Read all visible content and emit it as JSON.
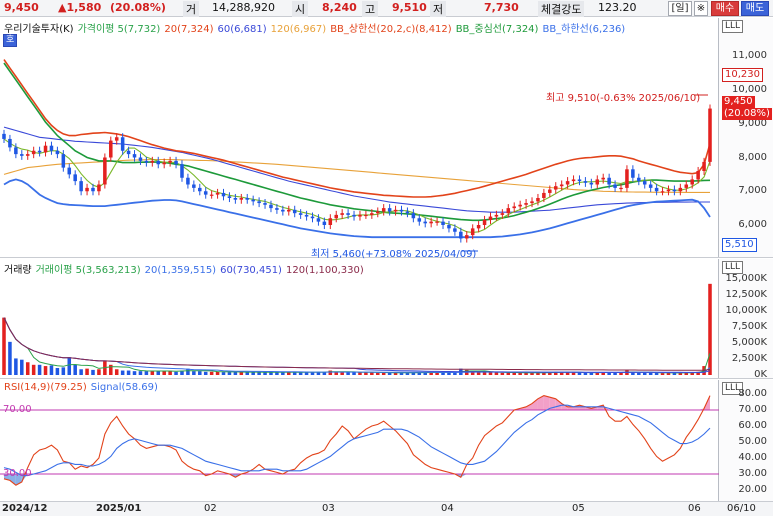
{
  "header": {
    "price": "9,450",
    "change": "▲1,580",
    "change_pct": "(20.08%)",
    "vol_label": "거",
    "volume": "14,288,920",
    "open_label": "시",
    "open": "8,240",
    "high_label": "고",
    "high": "9,510",
    "low_label": "저",
    "low": "7,730",
    "strength_label": "체결강도",
    "strength": "123.20",
    "period_btn": "[일]",
    "settings_icon": "※",
    "buy_btn": "매수",
    "sell_btn": "매도"
  },
  "price_panel": {
    "badge": "호",
    "legend": [
      {
        "text": "우리기술투자(K)",
        "color": "#111111"
      },
      {
        "text": "가격이평 5(7,732)",
        "color": "#2aa24a"
      },
      {
        "text": "20(7,324)",
        "color": "#e2431a"
      },
      {
        "text": "60(6,681)",
        "color": "#3a49d8"
      },
      {
        "text": "120(6,967)",
        "color": "#e8a23a"
      },
      {
        "text": "BB_상한선(20,2,c)(8,412)",
        "color": "#e2431a"
      },
      {
        "text": "BB_중심선(7,324)",
        "color": "#1d9a3a"
      },
      {
        "text": "BB_하한선(6,236)",
        "color": "#3a70e8"
      }
    ],
    "axis_ticks": [
      "11,000",
      "10,000",
      "9,000",
      "8,000",
      "7,000",
      "6,000"
    ],
    "last_price_tag": "9,450",
    "last_pct_tag": "(20.08%)",
    "top_tag": "10,230",
    "bottom_tag": "5,510",
    "high_annotation": "최고 9,510(-0.63% 2025/06/10)",
    "low_annotation": "최저 5,460(+73.08% 2025/04/09)",
    "colors": {
      "up": "#e3211f",
      "down": "#1f57e3"
    }
  },
  "volume_panel": {
    "legend": [
      {
        "text": "거래량",
        "color": "#111111"
      },
      {
        "text": "거래이평 5(3,563,213)",
        "color": "#2aa24a"
      },
      {
        "text": "20(1,359,515)",
        "color": "#3a70e8"
      },
      {
        "text": "60(730,451)",
        "color": "#3a49d8"
      },
      {
        "text": "120(1,100,330)",
        "color": "#8a2a4a"
      }
    ],
    "axis_ticks": [
      "15,000K",
      "12,500K",
      "10,000K",
      "7,500K",
      "5,000K",
      "2,500K",
      "0K"
    ]
  },
  "rsi_panel": {
    "legend": [
      {
        "text": "RSI(14,9)(79.25)",
        "color": "#e2431a"
      },
      {
        "text": "Signal(58.69)",
        "color": "#3a70e8"
      }
    ],
    "axis_ticks": [
      "80.00",
      "70.00",
      "60.00",
      "50.00",
      "40.00",
      "30.00",
      "20.00"
    ],
    "overbought_label": "70.00",
    "oversold_label": "30.00"
  },
  "x_axis": {
    "labels": [
      "2024/12",
      "2025/01",
      "02",
      "03",
      "04",
      "05",
      "06",
      "06/10"
    ]
  },
  "chart_data": {
    "type": "candlestick",
    "days": 120,
    "price_range": [
      5200,
      11600
    ],
    "close_series": [
      8550,
      8300,
      8100,
      8050,
      8100,
      8200,
      8150,
      8350,
      8200,
      8100,
      7700,
      7500,
      7300,
      7000,
      7100,
      7000,
      7200,
      8000,
      8500,
      8600,
      8200,
      8100,
      8000,
      7900,
      7850,
      7900,
      7800,
      7850,
      7900,
      7800,
      7400,
      7200,
      7100,
      7000,
      6900,
      6900,
      6950,
      6850,
      6800,
      6750,
      6800,
      6750,
      6700,
      6650,
      6600,
      6500,
      6450,
      6400,
      6450,
      6350,
      6300,
      6250,
      6200,
      6100,
      6000,
      6200,
      6300,
      6350,
      6300,
      6250,
      6300,
      6300,
      6350,
      6400,
      6500,
      6400,
      6450,
      6400,
      6350,
      6200,
      6100,
      6050,
      6100,
      6100,
      6000,
      5900,
      5800,
      5600,
      5700,
      5900,
      6000,
      6150,
      6250,
      6300,
      6350,
      6500,
      6550,
      6600,
      6650,
      6700,
      6800,
      6950,
      7050,
      7150,
      7200,
      7300,
      7350,
      7300,
      7250,
      7200,
      7350,
      7400,
      7200,
      7100,
      7100,
      7650,
      7400,
      7300,
      7200,
      7100,
      7000,
      7000,
      7050,
      7000,
      7100,
      7200,
      7350,
      7600,
      7870,
      9450
    ],
    "ma20": [
      10800,
      10550,
      10300,
      10050,
      9800,
      9550,
      9300,
      9050,
      8850,
      8650,
      8500,
      8350,
      8200,
      8100,
      8000,
      7950,
      7900,
      7900,
      7900,
      7880,
      7850,
      7850,
      7850,
      7860,
      7860,
      7870,
      7860,
      7850,
      7830,
      7800,
      7780,
      7750,
      7700,
      7650,
      7600,
      7550,
      7500,
      7450,
      7400,
      7350,
      7300,
      7250,
      7200,
      7150,
      7100,
      7050,
      7000,
      6950,
      6900,
      6850,
      6800,
      6760,
      6720,
      6680,
      6640,
      6600,
      6570,
      6540,
      6510,
      6480,
      6460,
      6440,
      6420,
      6400,
      6380,
      6360,
      6350,
      6340,
      6330,
      6320,
      6300,
      6280,
      6260,
      6240,
      6220,
      6200,
      6180,
      6160,
      6150,
      6140,
      6140,
      6150,
      6170,
      6190,
      6210,
      6240,
      6280,
      6330,
      6380,
      6430,
      6490,
      6550,
      6620,
      6690,
      6760,
      6830,
      6890,
      6940,
      6990,
      7030,
      7070,
      7110,
      7140,
      7170,
      7190,
      7230,
      7270,
      7300,
      7320,
      7330,
      7330,
      7320,
      7310,
      7300,
      7300,
      7300,
      7300,
      7310,
      7320,
      7324
    ],
    "ma60": [
      8900,
      8850,
      8800,
      8750,
      8700,
      8650,
      8600,
      8580,
      8560,
      8540,
      8520,
      8500,
      8480,
      8470,
      8460,
      8450,
      8440,
      8430,
      8420,
      8410,
      8400,
      8380,
      8360,
      8340,
      8320,
      8300,
      8270,
      8240,
      8210,
      8180,
      8150,
      8110,
      8070,
      8030,
      7990,
      7950,
      7900,
      7850,
      7800,
      7750,
      7700,
      7650,
      7600,
      7550,
      7500,
      7450,
      7400,
      7350,
      7300,
      7260,
      7220,
      7180,
      7140,
      7100,
      7060,
      7020,
      6980,
      6940,
      6900,
      6860,
      6830,
      6800,
      6770,
      6740,
      6710,
      6680,
      6660,
      6640,
      6620,
      6600,
      6580,
      6560,
      6540,
      6520,
      6500,
      6480,
      6460,
      6440,
      6420,
      6410,
      6400,
      6390,
      6380,
      6380,
      6380,
      6380,
      6380,
      6390,
      6400,
      6410,
      6420,
      6430,
      6440,
      6460,
      6480,
      6500,
      6520,
      6540,
      6560,
      6580,
      6600,
      6610,
      6620,
      6630,
      6640,
      6650,
      6655,
      6660,
      6665,
      6670,
      6672,
      6674,
      6676,
      6678,
      6680,
      6680,
      6681,
      6681,
      6681,
      6681
    ],
    "ma120": [
      7500,
      7550,
      7600,
      7650,
      7700,
      7720,
      7740,
      7760,
      7780,
      7800,
      7810,
      7820,
      7830,
      7840,
      7850,
      7860,
      7870,
      7880,
      7890,
      7900,
      7910,
      7920,
      7925,
      7930,
      7935,
      7940,
      7940,
      7940,
      7938,
      7935,
      7930,
      7925,
      7920,
      7915,
      7910,
      7905,
      7900,
      7890,
      7880,
      7870,
      7860,
      7850,
      7840,
      7830,
      7820,
      7810,
      7800,
      7785,
      7770,
      7755,
      7740,
      7725,
      7710,
      7695,
      7680,
      7665,
      7650,
      7635,
      7620,
      7605,
      7590,
      7575,
      7560,
      7545,
      7530,
      7515,
      7500,
      7485,
      7470,
      7455,
      7440,
      7425,
      7410,
      7395,
      7380,
      7365,
      7350,
      7335,
      7320,
      7305,
      7290,
      7275,
      7260,
      7245,
      7230,
      7215,
      7200,
      7185,
      7170,
      7155,
      7140,
      7125,
      7110,
      7095,
      7080,
      7065,
      7050,
      7040,
      7030,
      7020,
      7010,
      7000,
      6995,
      6990,
      6985,
      6980,
      6978,
      6976,
      6974,
      6972,
      6970,
      6970,
      6969,
      6968,
      6968,
      6967,
      6967,
      6967,
      6967,
      6967
    ],
    "bb_upper": [
      10900,
      10650,
      10400,
      10150,
      9900,
      9650,
      9400,
      9150,
      8950,
      8800,
      8700,
      8650,
      8650,
      8680,
      8700,
      8720,
      8730,
      8740,
      8720,
      8700,
      8660,
      8620,
      8560,
      8500,
      8440,
      8380,
      8330,
      8280,
      8240,
      8200,
      8180,
      8150,
      8120,
      8080,
      8040,
      8000,
      7960,
      7920,
      7870,
      7820,
      7770,
      7720,
      7670,
      7620,
      7570,
      7520,
      7470,
      7420,
      7380,
      7340,
      7300,
      7260,
      7220,
      7180,
      7140,
      7100,
      7070,
      7040,
      7010,
      6980,
      6960,
      6940,
      6920,
      6900,
      6880,
      6870,
      6860,
      6850,
      6840,
      6830,
      6830,
      6830,
      6840,
      6860,
      6880,
      6910,
      6940,
      6980,
      7020,
      7060,
      7100,
      7150,
      7200,
      7250,
      7300,
      7350,
      7400,
      7450,
      7500,
      7560,
      7620,
      7680,
      7740,
      7800,
      7850,
      7900,
      7940,
      7970,
      7990,
      8000,
      8020,
      8040,
      8050,
      8050,
      8040,
      8000,
      7960,
      7900,
      7850,
      7800,
      7750,
      7700,
      7650,
      7600,
      7560,
      7540,
      7520,
      7550,
      7800,
      8412
    ],
    "bb_lower": [
      7200,
      7300,
      7350,
      7300,
      7200,
      7050,
      6900,
      6800,
      6720,
      6650,
      6620,
      6600,
      6590,
      6580,
      6570,
      6560,
      6560,
      6560,
      6580,
      6600,
      6620,
      6640,
      6660,
      6680,
      6700,
      6720,
      6730,
      6740,
      6740,
      6730,
      6700,
      6660,
      6620,
      6580,
      6540,
      6500,
      6460,
      6420,
      6380,
      6340,
      6300,
      6260,
      6220,
      6180,
      6140,
      6100,
      6060,
      6020,
      5980,
      5940,
      5900,
      5870,
      5840,
      5810,
      5780,
      5750,
      5730,
      5710,
      5690,
      5670,
      5660,
      5650,
      5640,
      5640,
      5640,
      5640,
      5640,
      5640,
      5640,
      5640,
      5640,
      5640,
      5640,
      5640,
      5640,
      5640,
      5640,
      5640,
      5640,
      5640,
      5640,
      5640,
      5640,
      5650,
      5660,
      5680,
      5700,
      5720,
      5750,
      5780,
      5820,
      5860,
      5900,
      5950,
      6000,
      6050,
      6100,
      6150,
      6200,
      6250,
      6300,
      6350,
      6400,
      6450,
      6500,
      6550,
      6590,
      6620,
      6650,
      6670,
      6690,
      6700,
      6710,
      6720,
      6730,
      6740,
      6750,
      6700,
      6500,
      6236
    ],
    "volume_k": [
      9000,
      5200,
      2600,
      2400,
      2000,
      1600,
      1600,
      1400,
      1500,
      1100,
      1200,
      2800,
      1600,
      900,
      1000,
      800,
      900,
      2200,
      1600,
      900,
      700,
      700,
      600,
      600,
      600,
      600,
      700,
      600,
      600,
      500,
      700,
      1000,
      600,
      600,
      500,
      500,
      500,
      450,
      450,
      500,
      450,
      450,
      450,
      400,
      450,
      500,
      400,
      400,
      400,
      450,
      400,
      450,
      400,
      500,
      450,
      700,
      500,
      450,
      400,
      400,
      450,
      450,
      400,
      350,
      350,
      350,
      350,
      350,
      350,
      400,
      400,
      350,
      450,
      400,
      450,
      450,
      400,
      1000,
      800,
      500,
      450,
      450,
      450,
      400,
      350,
      350,
      400,
      350,
      350,
      350,
      350,
      400,
      400,
      500,
      400,
      400,
      400,
      400,
      350,
      350,
      400,
      450,
      400,
      350,
      350,
      700,
      450,
      350,
      350,
      350,
      350,
      300,
      350,
      300,
      350,
      400,
      400,
      500,
      1400,
      14300
    ],
    "rsi": [
      27,
      26,
      23,
      25,
      34,
      42,
      45,
      46,
      48,
      45,
      38,
      37,
      33,
      35,
      34,
      36,
      40,
      55,
      62,
      66,
      60,
      55,
      52,
      48,
      46,
      47,
      48,
      48,
      47,
      45,
      38,
      35,
      33,
      32,
      29,
      30,
      32,
      31,
      30,
      28,
      30,
      31,
      33,
      36,
      33,
      32,
      31,
      30,
      32,
      33,
      37,
      40,
      42,
      43,
      45,
      51,
      55,
      60,
      57,
      52,
      55,
      58,
      60,
      61,
      63,
      60,
      57,
      53,
      49,
      42,
      39,
      36,
      34,
      33,
      32,
      31,
      30,
      28,
      36,
      40,
      48,
      54,
      57,
      60,
      62,
      66,
      70,
      71,
      72,
      74,
      77,
      79,
      78,
      77,
      74,
      72,
      72,
      73,
      72,
      71,
      72,
      73,
      66,
      63,
      63,
      66,
      61,
      57,
      52,
      46,
      41,
      38,
      40,
      42,
      46,
      53,
      58,
      64,
      71,
      79
    ],
    "signal": [
      34,
      33,
      31,
      29,
      29,
      30,
      31,
      32,
      34,
      36,
      37,
      37,
      36,
      36,
      35,
      35,
      36,
      38,
      41,
      46,
      49,
      51,
      52,
      51,
      50,
      49,
      48,
      48,
      48,
      47,
      46,
      44,
      42,
      40,
      38,
      37,
      36,
      35,
      34,
      33,
      32,
      32,
      32,
      32,
      33,
      33,
      33,
      32,
      32,
      32,
      32,
      33,
      35,
      37,
      39,
      41,
      44,
      47,
      50,
      52,
      53,
      54,
      55,
      56,
      58,
      58,
      58,
      58,
      57,
      55,
      53,
      50,
      47,
      45,
      43,
      41,
      39,
      37,
      36,
      36,
      37,
      38,
      41,
      44,
      48,
      52,
      56,
      59,
      62,
      64,
      67,
      69,
      71,
      72,
      73,
      73,
      72,
      72,
      72,
      72,
      72,
      72,
      71,
      70,
      69,
      68,
      67,
      66,
      64,
      62,
      59,
      56,
      53,
      51,
      49,
      49,
      50,
      52,
      55,
      58.69
    ],
    "rsi_range": [
      15,
      85
    ],
    "volume_range_k": [
      0,
      16000
    ]
  }
}
